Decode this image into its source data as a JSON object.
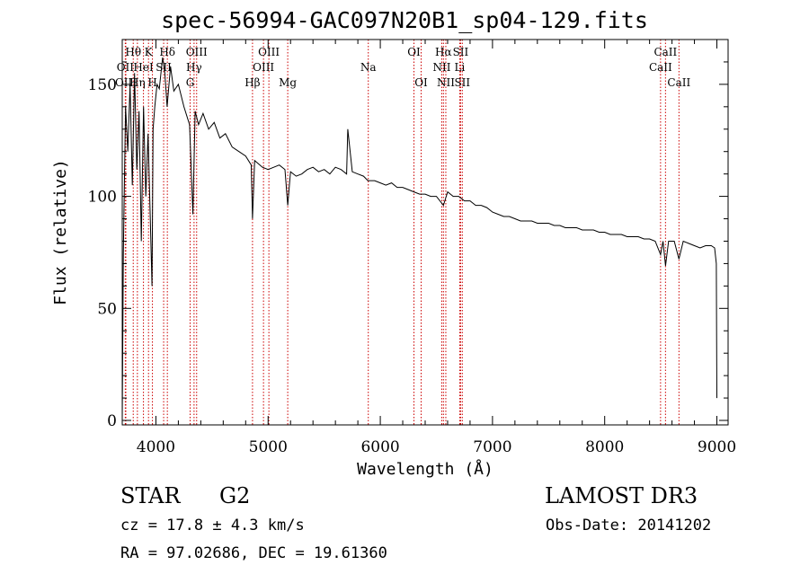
{
  "chart_data": {
    "type": "line",
    "title": "spec-56994-GAC097N20B1_sp04-129.fits",
    "xlabel": "Wavelength (Å)",
    "ylabel": "Flux (relative)",
    "xlim": [
      3700,
      9100
    ],
    "ylim": [
      -2,
      170
    ],
    "xticks": [
      4000,
      5000,
      6000,
      7000,
      8000,
      9000
    ],
    "xtick_labels": [
      "4000",
      "5000",
      "6000",
      "7000",
      "8000",
      "9000"
    ],
    "yticks": [
      0,
      50,
      100,
      150
    ],
    "ytick_labels": [
      "0",
      "50",
      "100",
      "150"
    ],
    "grid": false,
    "series": [
      {
        "name": "flux",
        "x": [
          3700,
          3710,
          3730,
          3750,
          3770,
          3790,
          3810,
          3830,
          3850,
          3870,
          3890,
          3910,
          3930,
          3950,
          3965,
          3975,
          3990,
          4010,
          4030,
          4060,
          4080,
          4100,
          4130,
          4160,
          4200,
          4250,
          4300,
          4330,
          4350,
          4380,
          4420,
          4470,
          4520,
          4570,
          4620,
          4680,
          4740,
          4800,
          4850,
          4861,
          4880,
          4950,
          5000,
          5050,
          5100,
          5150,
          5175,
          5200,
          5250,
          5300,
          5350,
          5400,
          5450,
          5500,
          5550,
          5600,
          5650,
          5700,
          5710,
          5750,
          5800,
          5850,
          5890,
          5950,
          6000,
          6050,
          6100,
          6150,
          6200,
          6250,
          6300,
          6350,
          6400,
          6450,
          6500,
          6563,
          6600,
          6650,
          6700,
          6750,
          6800,
          6850,
          6900,
          6950,
          7000,
          7050,
          7100,
          7150,
          7200,
          7250,
          7300,
          7350,
          7400,
          7450,
          7500,
          7550,
          7600,
          7650,
          7700,
          7750,
          7800,
          7850,
          7900,
          7950,
          8000,
          8050,
          8100,
          8150,
          8200,
          8250,
          8300,
          8350,
          8400,
          8450,
          8498,
          8520,
          8542,
          8570,
          8620,
          8662,
          8700,
          8750,
          8800,
          8850,
          8900,
          8950,
          8980,
          8995,
          9000
        ],
        "y": [
          0,
          74,
          140,
          120,
          150,
          105,
          155,
          112,
          138,
          80,
          140,
          100,
          128,
          90,
          60,
          130,
          140,
          150,
          148,
          162,
          155,
          140,
          158,
          147,
          150,
          140,
          132,
          92,
          138,
          132,
          137,
          130,
          133,
          126,
          128,
          122,
          120,
          118,
          114,
          90,
          116,
          113,
          112,
          113,
          114,
          112,
          96,
          111,
          109,
          110,
          112,
          113,
          111,
          112,
          110,
          113,
          112,
          110,
          130,
          111,
          110,
          109,
          107,
          107,
          106,
          105,
          106,
          104,
          104,
          103,
          102,
          101,
          101,
          100,
          100,
          96,
          102,
          100,
          100,
          98,
          98,
          96,
          96,
          95,
          93,
          92,
          91,
          91,
          90,
          89,
          89,
          89,
          88,
          88,
          88,
          87,
          87,
          86,
          86,
          86,
          85,
          85,
          85,
          84,
          84,
          83,
          83,
          83,
          82,
          82,
          82,
          81,
          81,
          80,
          74,
          80,
          69,
          80,
          80,
          72,
          80,
          79,
          78,
          77,
          78,
          78,
          77,
          70,
          10
        ]
      }
    ],
    "lines": [
      {
        "label": "Hθ",
        "wave": 3798,
        "row": 0
      },
      {
        "label": "OII",
        "wave": 3727,
        "row": 1
      },
      {
        "label": "OIII",
        "wave": 3732,
        "row": 2
      },
      {
        "label": "HeI",
        "wave": 3889,
        "row": 1
      },
      {
        "label": "Hη",
        "wave": 3835,
        "row": 2
      },
      {
        "label": "K",
        "wave": 3934,
        "row": 0
      },
      {
        "label": "H",
        "wave": 3969,
        "row": 2
      },
      {
        "label": "SII",
        "wave": 4069,
        "row": 1
      },
      {
        "label": "Hδ",
        "wave": 4102,
        "row": 0
      },
      {
        "label": "OIII",
        "wave": 4363,
        "row": 0
      },
      {
        "label": "Hγ",
        "wave": 4340,
        "row": 1
      },
      {
        "label": "G",
        "wave": 4305,
        "row": 2
      },
      {
        "label": "Hβ",
        "wave": 4861,
        "row": 2
      },
      {
        "label": "OIII",
        "wave": 5007,
        "row": 0
      },
      {
        "label": "OIII",
        "wave": 4959,
        "row": 1
      },
      {
        "label": "Mg",
        "wave": 5175,
        "row": 2
      },
      {
        "label": "Na",
        "wave": 5893,
        "row": 1
      },
      {
        "label": "OI",
        "wave": 6300,
        "row": 0
      },
      {
        "label": "OI",
        "wave": 6364,
        "row": 2
      },
      {
        "label": "Hα",
        "wave": 6563,
        "row": 0
      },
      {
        "label": "NII",
        "wave": 6548,
        "row": 1
      },
      {
        "label": "NII",
        "wave": 6584,
        "row": 2
      },
      {
        "label": "SII",
        "wave": 6716,
        "row": 0
      },
      {
        "label": "Li",
        "wave": 6708,
        "row": 1
      },
      {
        "label": "SII",
        "wave": 6731,
        "row": 2
      },
      {
        "label": "CaII",
        "wave": 8542,
        "row": 0
      },
      {
        "label": "CaII",
        "wave": 8498,
        "row": 1
      },
      {
        "label": "CaII",
        "wave": 8662,
        "row": 2
      }
    ],
    "line_color": "#cc0000"
  },
  "info": {
    "object_type": "STAR",
    "subclass": "G2",
    "survey": "LAMOST DR3",
    "redshift": "cz = 17.8 ± 4.3 km/s",
    "obs_date": "Obs-Date: 20141202",
    "coords": "RA =  97.02686, DEC =  19.61360"
  }
}
